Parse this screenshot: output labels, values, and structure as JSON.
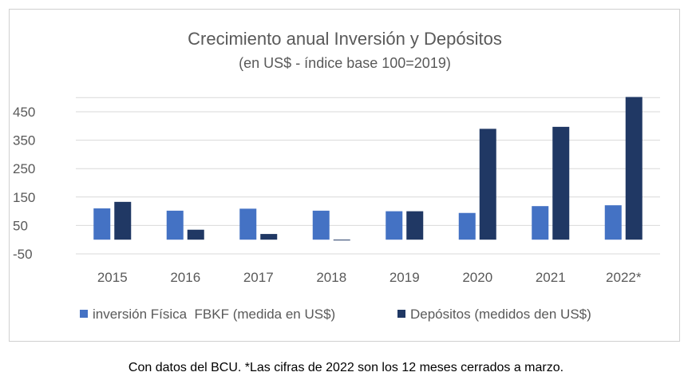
{
  "chart_data": {
    "type": "bar",
    "title": "Crecimiento anual Inversión y Depósitos",
    "subtitle": "(en US$ - índice base 100=2019)",
    "categories": [
      "2015",
      "2016",
      "2017",
      "2018",
      "2019",
      "2020",
      "2021",
      "2022*"
    ],
    "series": [
      {
        "name": "inversión Física  FBKF (medida en US$)",
        "color": "#4472C4",
        "values": [
          110,
          102,
          109,
          102,
          100,
          94,
          118,
          121
        ]
      },
      {
        "name": "Depósitos (medidos den US$)",
        "color": "#203864",
        "values": [
          133,
          35,
          20,
          -2,
          100,
          390,
          397,
          502
        ]
      }
    ],
    "yticks": [
      450,
      350,
      250,
      150,
      50,
      -50
    ],
    "ylim": [
      -50,
      510
    ],
    "grid": true,
    "legend_position": "bottom"
  },
  "caption": "Con datos del BCU. *Las cifras de 2022 son los 12 meses cerrados a marzo."
}
